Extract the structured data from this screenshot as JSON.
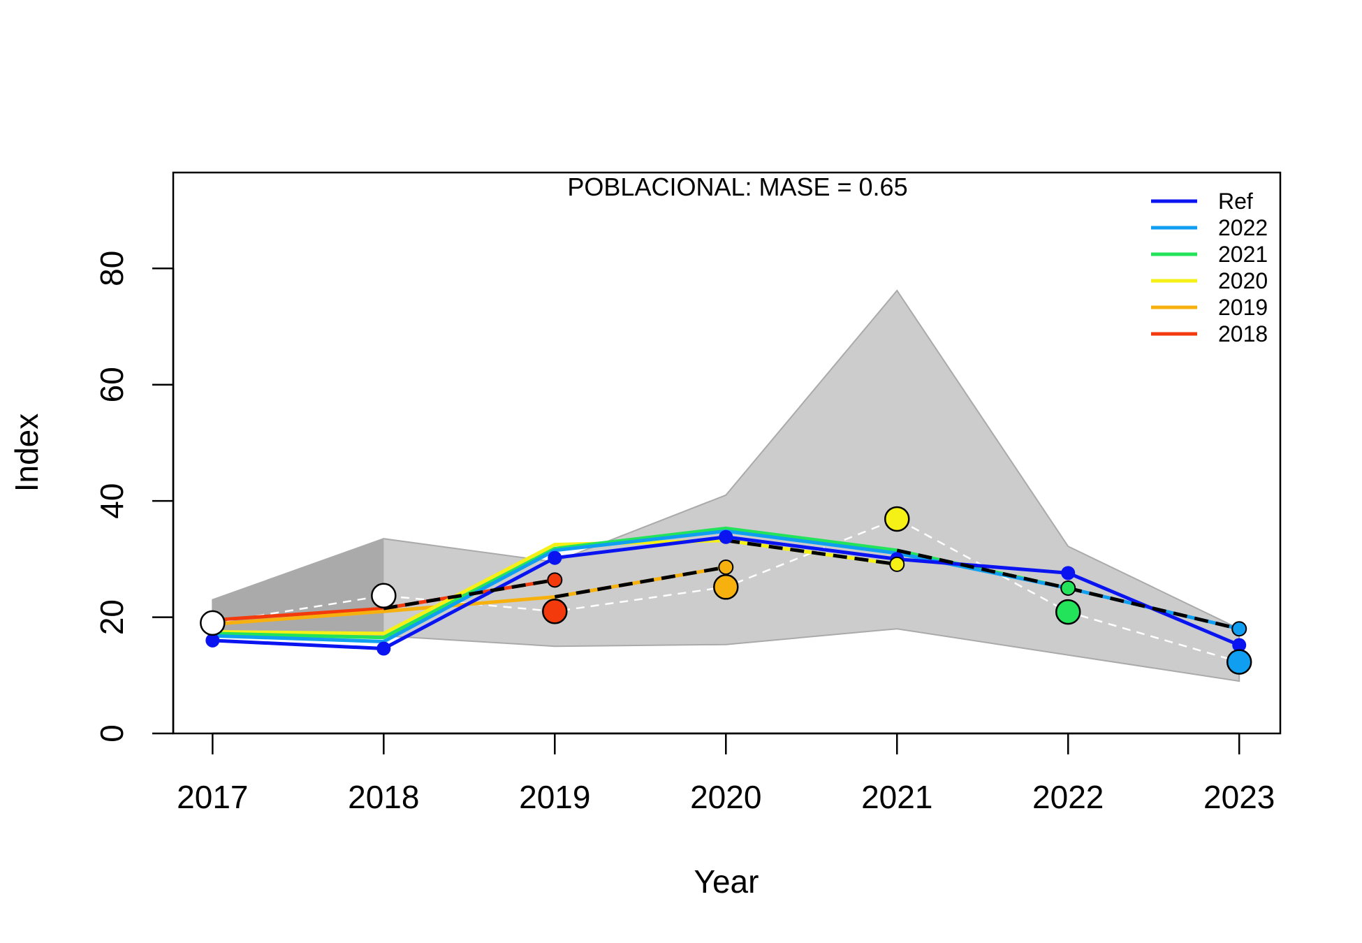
{
  "chart_data": {
    "type": "line",
    "title": "POBLACIONAL: MASE = 0.65",
    "xlabel": "Year",
    "ylabel": "Index",
    "x": [
      2017,
      2018,
      2019,
      2020,
      2021,
      2022,
      2023
    ],
    "x_ticks": [
      "2017",
      "2018",
      "2019",
      "2020",
      "2021",
      "2022",
      "2023"
    ],
    "y_ticks": [
      "0",
      "20",
      "40",
      "60",
      "80"
    ],
    "y_tick_values": [
      0,
      20,
      40,
      60,
      80
    ],
    "xlim": [
      2016.77,
      2023.24
    ],
    "ylim": [
      0,
      96.5
    ],
    "legend_position": "top-right",
    "grid": false,
    "observed_uncertainty": {
      "x": [
        2017,
        2018,
        2019,
        2020,
        2021,
        2022,
        2023
      ],
      "lower": [
        17.5,
        16.8,
        15,
        15.3,
        18,
        13.5,
        9
      ],
      "upper": [
        23,
        33.5,
        29.5,
        41,
        76.2,
        32.2,
        18
      ],
      "color": "#cccccc"
    },
    "observed": {
      "x": [
        2017,
        2018,
        2019,
        2020,
        2021,
        2022,
        2023
      ],
      "y": [
        19,
        23.7,
        21,
        25.2,
        36.9,
        20.9,
        12.3
      ]
    },
    "series": [
      {
        "name": "Ref",
        "color": "#0a14f0",
        "x": [
          2017,
          2018,
          2019,
          2020,
          2021,
          2022,
          2023
        ],
        "y": [
          16,
          14.6,
          30.2,
          33.8,
          30,
          27.6,
          15.2
        ]
      },
      {
        "name": "2022",
        "color": "#0f9ef0",
        "x": [
          2017,
          2018,
          2019,
          2020,
          2021,
          2022,
          2023
        ],
        "y": [
          16.8,
          15.8,
          31.5,
          34.8,
          31,
          25,
          18
        ]
      },
      {
        "name": "2021",
        "color": "#22e35a",
        "x": [
          2017,
          2018,
          2019,
          2020,
          2021,
          2022
        ],
        "y": [
          17.2,
          16.5,
          31.8,
          35.3,
          31.5,
          25
        ]
      },
      {
        "name": "2020",
        "color": "#f5f016",
        "x": [
          2017,
          2018,
          2019,
          2020,
          2021
        ],
        "y": [
          17.5,
          17.2,
          32.5,
          33.2,
          29.1
        ]
      },
      {
        "name": "2019",
        "color": "#f7b10f",
        "x": [
          2017,
          2018,
          2019,
          2020
        ],
        "y": [
          18.8,
          21,
          23.5,
          28.6
        ]
      },
      {
        "name": "2018",
        "color": "#f23a0c",
        "x": [
          2017,
          2018,
          2019
        ],
        "y": [
          19.5,
          21.5,
          26.4
        ]
      }
    ],
    "forecasts": [
      {
        "x": [
          2018,
          2019
        ],
        "y": [
          21.5,
          26.4
        ],
        "color": "#f23a0c"
      },
      {
        "x": [
          2019,
          2020
        ],
        "y": [
          23.5,
          28.6
        ],
        "color": "#f7b10f"
      },
      {
        "x": [
          2020,
          2021
        ],
        "y": [
          33.2,
          29.1
        ],
        "color": "#f5f016"
      },
      {
        "x": [
          2021,
          2022
        ],
        "y": [
          31.5,
          25
        ],
        "color": "#22e35a"
      },
      {
        "x": [
          2022,
          2023
        ],
        "y": [
          25,
          18
        ],
        "color": "#0f9ef0"
      }
    ],
    "observed_point_colors": [
      "#ffffff",
      "#ffffff",
      "#f23a0c",
      "#f7b10f",
      "#f5f016",
      "#22e35a",
      "#0f9ef0"
    ]
  }
}
